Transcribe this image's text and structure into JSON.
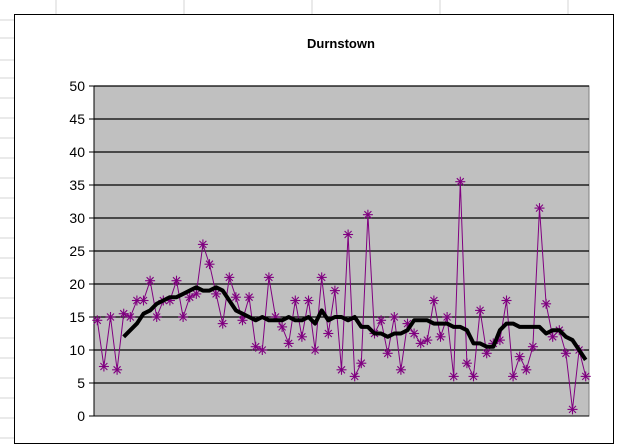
{
  "chart_data": {
    "type": "line",
    "title": "Durnstown",
    "xlabel": "",
    "ylabel": "",
    "ylim": [
      0,
      50
    ],
    "yticks": [
      0,
      5,
      10,
      15,
      20,
      25,
      30,
      35,
      40,
      45,
      50
    ],
    "grid": true,
    "legend": "none",
    "plot_background": "#c0c0c0",
    "series": [
      {
        "style": "line-with-asterisk-markers",
        "color": "#800080",
        "values": [
          14.5,
          7.5,
          15,
          7,
          15.5,
          15,
          17.5,
          17.5,
          20.5,
          15,
          17.5,
          17.5,
          20.5,
          15,
          18,
          18.5,
          26,
          23,
          18.5,
          14,
          21,
          18,
          14.5,
          18,
          10.5,
          10,
          21,
          15,
          13.5,
          11,
          17.5,
          12,
          17.5,
          10,
          21,
          12.5,
          19,
          7,
          27.5,
          6,
          8,
          30.5,
          12.5,
          14.5,
          9.5,
          15,
          7,
          14,
          12.5,
          11,
          11.5,
          17.5,
          12,
          15,
          6,
          35.5,
          8,
          6,
          16,
          9.5,
          11,
          11.5,
          17.5,
          6,
          9,
          7,
          10.5,
          31.5,
          17,
          12,
          13,
          9.5,
          1,
          10,
          6
        ]
      },
      {
        "style": "thick-line",
        "color": "#000000",
        "values": [
          null,
          null,
          null,
          null,
          12,
          13,
          14,
          15.5,
          16,
          17,
          17.5,
          18,
          18,
          18.5,
          19,
          19.5,
          19,
          19,
          19.5,
          19,
          17.5,
          16,
          15.5,
          15,
          14.5,
          15,
          14.5,
          14.5,
          14.5,
          15,
          14.5,
          14.5,
          15,
          14,
          16,
          14.5,
          15,
          15,
          14.5,
          15,
          13.5,
          13.5,
          12.5,
          12.5,
          12,
          12.5,
          12.5,
          13,
          14.5,
          14.5,
          14.5,
          14,
          14,
          14,
          13.5,
          13.5,
          13,
          11,
          11,
          10.5,
          10.5,
          13,
          14,
          14,
          13.5,
          13.5,
          13.5,
          13.5,
          12.5,
          13,
          13,
          12,
          11.5,
          10,
          8.5
        ]
      }
    ]
  }
}
